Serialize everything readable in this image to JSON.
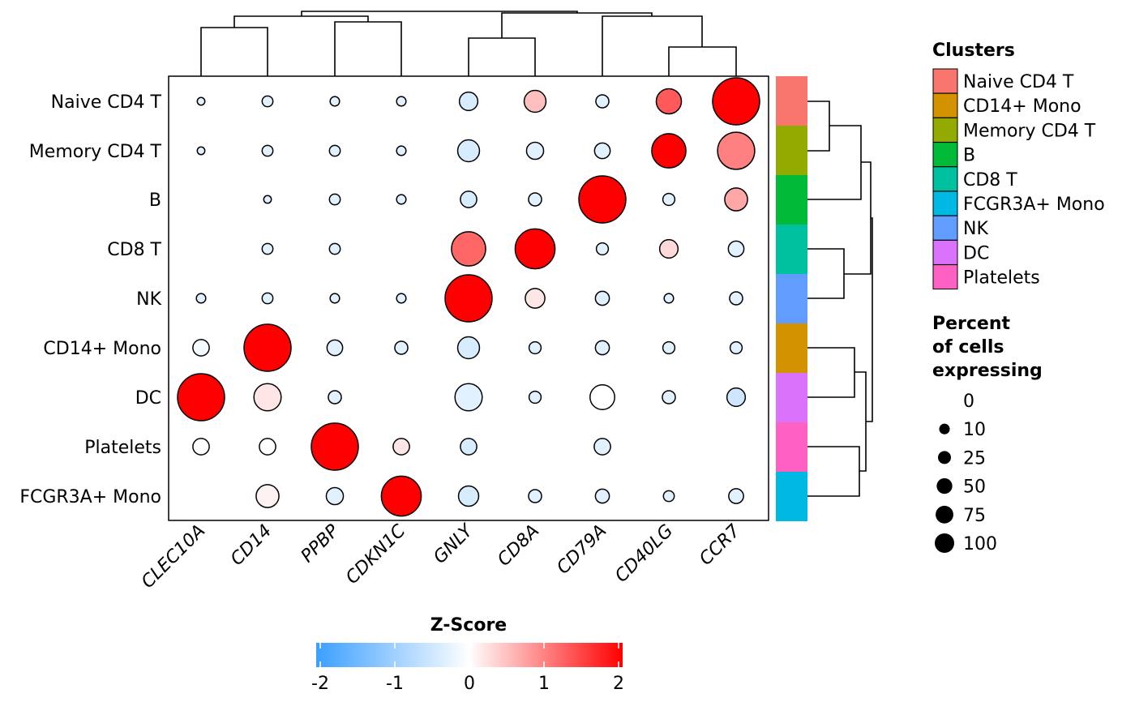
{
  "chart_data": {
    "type": "dotplot",
    "genes": [
      "CLEC10A",
      "CD14",
      "PPBP",
      "CDKN1C",
      "GNLY",
      "CD8A",
      "CD79A",
      "CD40LG",
      "CCR7"
    ],
    "clusters": [
      "Naive CD4 T",
      "Memory CD4 T",
      "B",
      "CD8 T",
      "NK",
      "CD14+ Mono",
      "DC",
      "Platelets",
      "FCGR3A+ Mono"
    ],
    "percent": [
      [
        1,
        3,
        2,
        2,
        12,
        18,
        5,
        25,
        100
      ],
      [
        1,
        3,
        3,
        2,
        18,
        10,
        8,
        50,
        60
      ],
      [
        0,
        1,
        3,
        2,
        9,
        5,
        100,
        4,
        20
      ],
      [
        0,
        3,
        3,
        0,
        50,
        70,
        4,
        12,
        8
      ],
      [
        2,
        3,
        2,
        2,
        100,
        14,
        6,
        2,
        5
      ],
      [
        9,
        100,
        8,
        5,
        18,
        4,
        6,
        4,
        4
      ],
      [
        100,
        30,
        5,
        0,
        30,
        4,
        24,
        5,
        12
      ],
      [
        9,
        9,
        100,
        9,
        9,
        0,
        9,
        0,
        0
      ],
      [
        0,
        20,
        10,
        70,
        15,
        5,
        6,
        3,
        7
      ]
    ],
    "zscore": [
      [
        -0.3,
        -0.3,
        -0.3,
        -0.3,
        -0.4,
        0.5,
        -0.3,
        1.3,
        2.0
      ],
      [
        -0.3,
        -0.3,
        -0.3,
        -0.3,
        -0.4,
        -0.3,
        -0.3,
        2.0,
        1.0
      ],
      [
        -0.3,
        -0.3,
        -0.3,
        -0.3,
        -0.4,
        -0.3,
        2.0,
        -0.3,
        0.7
      ],
      [
        -0.3,
        -0.3,
        -0.3,
        -0.3,
        1.2,
        2.0,
        -0.3,
        0.3,
        -0.3
      ],
      [
        -0.3,
        -0.3,
        -0.3,
        -0.3,
        2.0,
        0.2,
        -0.3,
        -0.3,
        -0.3
      ],
      [
        -0.1,
        2.0,
        -0.3,
        -0.3,
        -0.4,
        -0.3,
        -0.3,
        -0.3,
        -0.3
      ],
      [
        2.0,
        0.2,
        -0.3,
        -0.3,
        -0.3,
        -0.3,
        0.0,
        -0.3,
        -0.5
      ],
      [
        0.0,
        0.0,
        2.0,
        0.2,
        -0.4,
        -0.3,
        -0.3,
        -0.3,
        -0.3
      ],
      [
        -0.3,
        0.1,
        -0.3,
        2.0,
        -0.4,
        -0.3,
        -0.3,
        -0.3,
        -0.3
      ]
    ],
    "row_order_colors": [
      "#F8766D",
      "#93AA00",
      "#00BA38",
      "#00C19F",
      "#619CFF",
      "#D39200",
      "#DB72FB",
      "#FF61C3",
      "#00B9E3"
    ],
    "colorbar": {
      "title": "Z-Score",
      "ticks": [
        "-2",
        "-1",
        "0",
        "1",
        "2"
      ],
      "range": [
        -2,
        2
      ],
      "colors": [
        "#3B9FFF",
        "#FFFFFF",
        "#FF0000"
      ]
    },
    "size_legend": {
      "title": [
        "Percent",
        "of cells",
        "expressing"
      ],
      "breaks": [
        0,
        10,
        25,
        50,
        75,
        100
      ],
      "labels": [
        "0",
        "10",
        "25",
        "50",
        "75",
        "100"
      ]
    },
    "cluster_legend": {
      "title": "Clusters",
      "labels": [
        "Naive CD4 T",
        "CD14+ Mono",
        "Memory CD4 T",
        "B",
        "CD8 T",
        "FCGR3A+ Mono",
        "NK",
        "DC",
        "Platelets"
      ],
      "colors": [
        "#F8766D",
        "#D39200",
        "#93AA00",
        "#00BA38",
        "#00C19F",
        "#00B9E3",
        "#619CFF",
        "#DB72FB",
        "#FF61C3"
      ]
    }
  }
}
